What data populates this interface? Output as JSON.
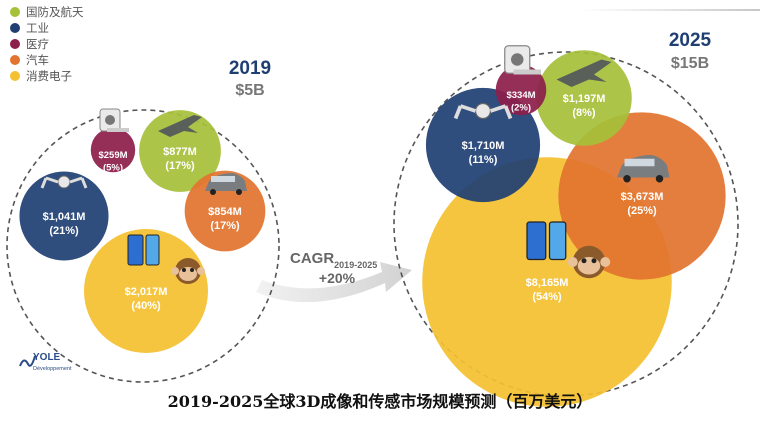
{
  "legend": [
    {
      "label": "国防及航天",
      "color": "#a6c03a"
    },
    {
      "label": "工业",
      "color": "#1f3f73"
    },
    {
      "label": "医疗",
      "color": "#8d1f4b"
    },
    {
      "label": "汽车",
      "color": "#e2742f"
    },
    {
      "label": "消费电子",
      "color": "#f4c132"
    }
  ],
  "cagr": {
    "label": "CAGR",
    "sub": "2019-2025",
    "value": "+20%"
  },
  "logo": {
    "text": "YOLE",
    "sub": "Développement"
  },
  "caption": "2019-2025全球3D成像和传感市场规模预测（百万美元）",
  "chart_data": {
    "type": "bubble",
    "unit": "M",
    "years": [
      {
        "year": "2019",
        "total": "$5B",
        "segments": [
          {
            "name": "国防及航天",
            "value_label": "$877M",
            "pct_label": "(17%)",
            "value": 877,
            "pct": 17
          },
          {
            "name": "工业",
            "value_label": "$1,041M",
            "pct_label": "(21%)",
            "value": 1041,
            "pct": 21
          },
          {
            "name": "医疗",
            "value_label": "$259M",
            "pct_label": "(5%)",
            "value": 259,
            "pct": 5
          },
          {
            "name": "汽车",
            "value_label": "$854M",
            "pct_label": "(17%)",
            "value": 854,
            "pct": 17
          },
          {
            "name": "消费电子",
            "value_label": "$2,017M",
            "pct_label": "(40%)",
            "value": 2017,
            "pct": 40
          }
        ]
      },
      {
        "year": "2025",
        "total": "$15B",
        "segments": [
          {
            "name": "国防及航天",
            "value_label": "$1,197M",
            "pct_label": "(8%)",
            "value": 1197,
            "pct": 8
          },
          {
            "name": "工业",
            "value_label": "$1,710M",
            "pct_label": "(11%)",
            "value": 1710,
            "pct": 11
          },
          {
            "name": "医疗",
            "value_label": "$334M",
            "pct_label": "(2%)",
            "value": 334,
            "pct": 2
          },
          {
            "name": "汽车",
            "value_label": "$3,673M",
            "pct_label": "(25%)",
            "value": 3673,
            "pct": 25
          },
          {
            "name": "消费电子",
            "value_label": "$8,165M",
            "pct_label": "(54%)",
            "value": 8165,
            "pct": 54
          }
        ]
      }
    ]
  }
}
